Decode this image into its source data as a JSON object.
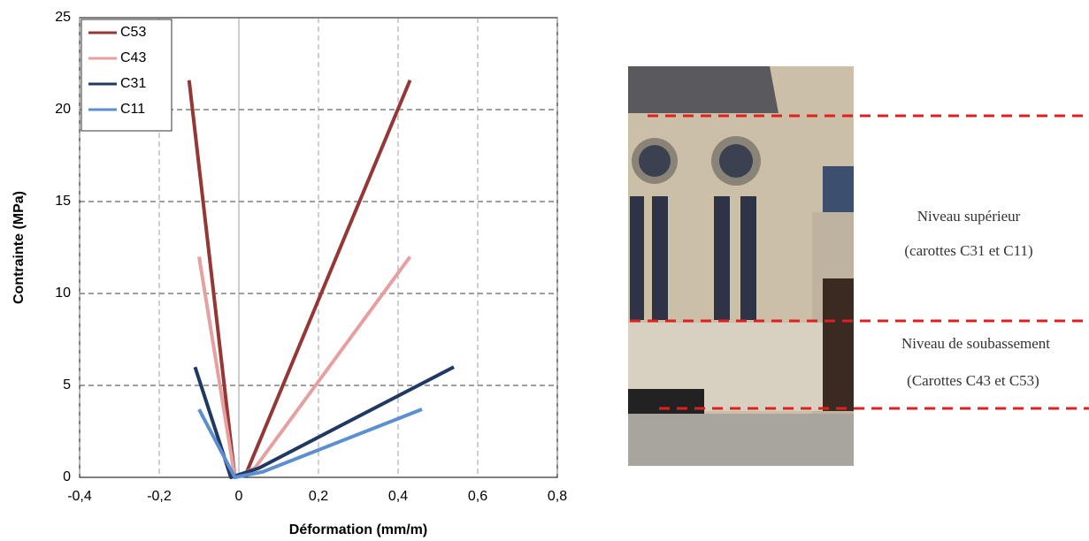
{
  "chart_data": {
    "type": "line",
    "xlabel": "Déformation (mm/m)",
    "ylabel": "Contrainte (MPa)",
    "xlim": [
      -0.4,
      0.8
    ],
    "xticks": [
      {
        "value": -0.4,
        "label": "-0,4"
      },
      {
        "value": -0.2,
        "label": "-0,2"
      },
      0,
      {
        "value": 0.2,
        "label": "0,2"
      },
      {
        "value": 0.4,
        "label": "0,4"
      },
      {
        "value": 0.6,
        "label": "0,6"
      },
      {
        "value": 0.8,
        "label": "0,8"
      }
    ],
    "ylim": [
      0,
      25
    ],
    "yticks": [
      0,
      5,
      10,
      15,
      20,
      25
    ],
    "grid": true,
    "legend": "upper-left",
    "series": [
      {
        "name": "C53",
        "color": "#953735",
        "x": [
          -0.125,
          -0.01,
          0.02,
          0.43
        ],
        "values": [
          21.6,
          0,
          0.3,
          21.6
        ]
      },
      {
        "name": "C43",
        "color": "#e6a0a0",
        "x": [
          -0.1,
          -0.01,
          0.04,
          0.43
        ],
        "values": [
          12,
          0,
          0.5,
          12
        ]
      },
      {
        "name": "C31",
        "color": "#1f3864",
        "x": [
          -0.11,
          -0.02,
          0.05,
          0.54
        ],
        "values": [
          6,
          0,
          0.5,
          6
        ]
      },
      {
        "name": "C11",
        "color": "#5b8fd0",
        "x": [
          -0.1,
          -0.01,
          0.06,
          0.46
        ],
        "values": [
          3.7,
          0,
          0.3,
          3.7
        ]
      }
    ]
  },
  "photo_labels": [
    "Niveau supérieur",
    "(carottes C31 et C11)",
    "Niveau de soubassement",
    "(Carottes C43 et C53)"
  ]
}
